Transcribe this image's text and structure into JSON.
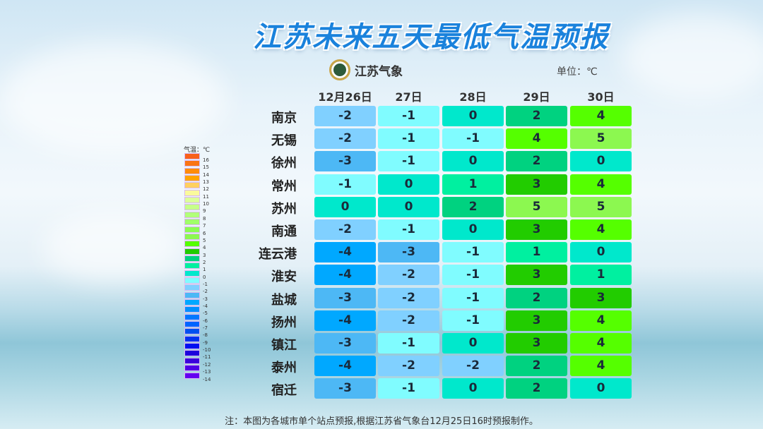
{
  "title": "江苏未来五天最低气温预报",
  "logo_text": "江苏气象",
  "unit": "单位：℃",
  "legend": {
    "title": "气温：℃",
    "levels": [
      16,
      15,
      14,
      13,
      12,
      11,
      10,
      9,
      8,
      7,
      6,
      5,
      4,
      3,
      2,
      1,
      0,
      -1,
      -2,
      -3,
      -4,
      -5,
      -6,
      -7,
      -8,
      -9,
      -10,
      -11,
      -12,
      -13,
      -14
    ],
    "colors": {
      "16": "#f8601a",
      "15": "#fa7414",
      "14": "#ff8c0a",
      "13": "#ffa400",
      "12": "#ffd060",
      "11": "#fafa9c",
      "10": "#dcff9a",
      "9": "#c6ff8a",
      "8": "#b2ff7a",
      "7": "#a0ff6a",
      "6": "#8cfc52",
      "5": "#8cf850",
      "4": "#55ff00",
      "3": "#22cc00",
      "2": "#00d280",
      "1": "#00f0a0",
      "0": "#00e8cc",
      "-1": "#80fcff",
      "-2": "#80d0ff",
      "-3": "#4db8f5",
      "-4": "#00a8ff",
      "-5": "#0090ff",
      "-6": "#0078ff",
      "-7": "#0064ff",
      "-8": "#0050f0",
      "-9": "#0032f0",
      "-10": "#0010f0",
      "-11": "#1e00dc",
      "-12": "#3c00dc",
      "-13": "#5000e6",
      "-14": "#6400f0"
    }
  },
  "chart_data": {
    "type": "heatmap",
    "title": "江苏未来五天最低气温预报",
    "columns": [
      "12月26日",
      "27日",
      "28日",
      "29日",
      "30日"
    ],
    "rows": [
      "南京",
      "无锡",
      "徐州",
      "常州",
      "苏州",
      "南通",
      "连云港",
      "淮安",
      "盐城",
      "扬州",
      "镇江",
      "泰州",
      "宿迁"
    ],
    "values": [
      [
        -2,
        -1,
        0,
        2,
        4
      ],
      [
        -2,
        -1,
        -1,
        4,
        5
      ],
      [
        -3,
        -1,
        0,
        2,
        0
      ],
      [
        -1,
        0,
        1,
        3,
        4
      ],
      [
        0,
        0,
        2,
        5,
        5
      ],
      [
        -2,
        -1,
        0,
        3,
        4
      ],
      [
        -4,
        -3,
        -1,
        1,
        0
      ],
      [
        -4,
        -2,
        -1,
        3,
        1
      ],
      [
        -3,
        -2,
        -1,
        2,
        3
      ],
      [
        -4,
        -2,
        -1,
        3,
        4
      ],
      [
        -3,
        -1,
        0,
        3,
        4
      ],
      [
        -4,
        -2,
        -2,
        2,
        4
      ],
      [
        -3,
        -1,
        0,
        2,
        0
      ]
    ],
    "unit": "℃"
  },
  "footer": "注：本图为各城市单个站点预报,根据江苏省气象台12月25日16时预报制作。"
}
